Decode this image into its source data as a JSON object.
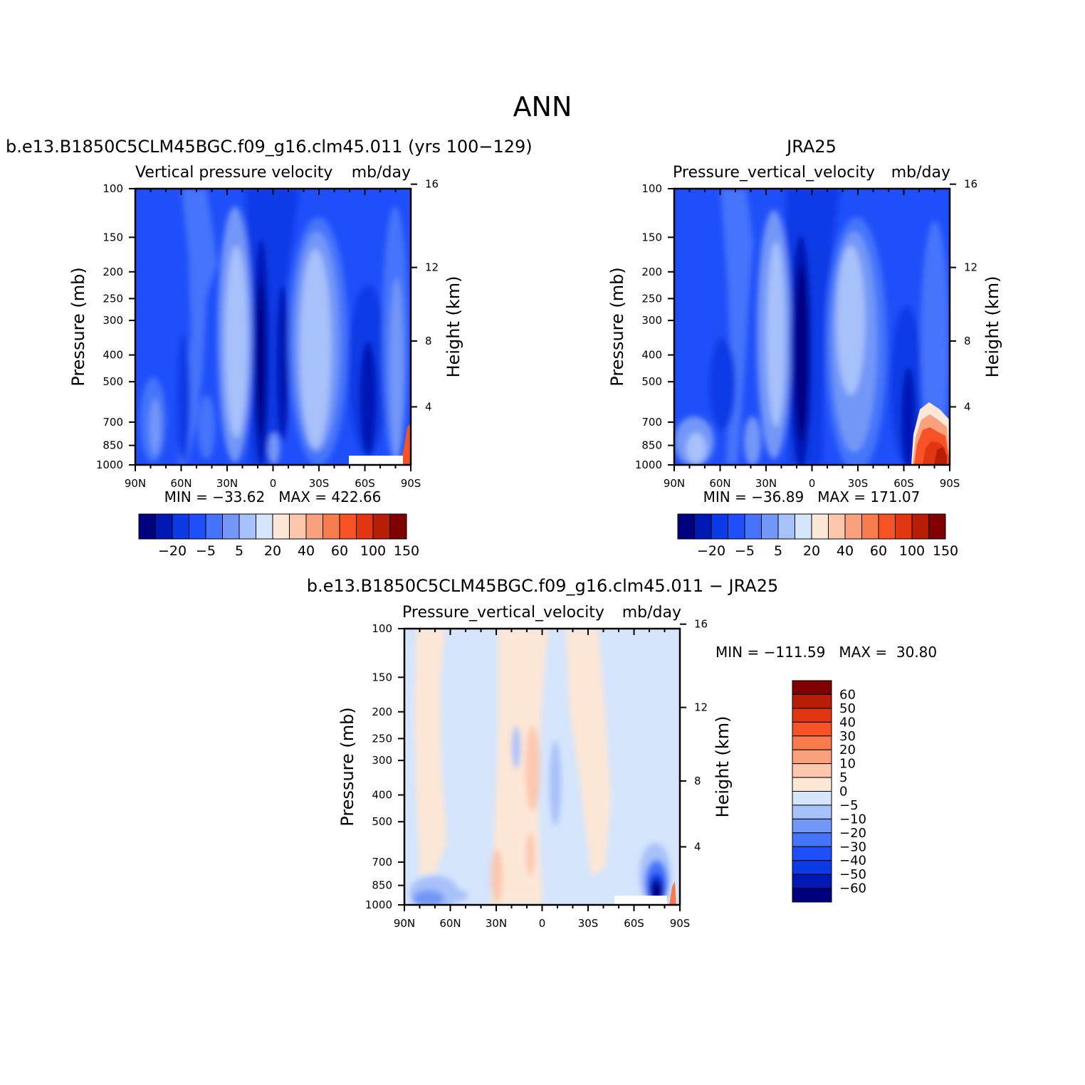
{
  "title": "ANN",
  "panels": [
    {
      "id": "model",
      "case_title": "b.e13.B1850C5CLM45BGC.f09_g16.clm45.011 (yrs 100−129)",
      "var_label": "Vertical pressure velocity",
      "units": "mb/day",
      "stats": "MIN = −33.62   MAX = 422.66"
    },
    {
      "id": "obs",
      "case_title": "JRA25",
      "var_label": "Pressure_vertical_velocity",
      "units": "mb/day",
      "stats": "MIN = −36.89   MAX = 171.07"
    },
    {
      "id": "diff",
      "case_title": "b.e13.B1850C5CLM45BGC.f09_g16.clm45.011 − JRA25",
      "var_label": "Pressure_vertical_velocity",
      "units": "mb/day",
      "stats": "MIN = −111.59   MAX =  30.80"
    }
  ],
  "axes": {
    "ylabel_left": "Pressure (mb)",
    "ylabel_right": "Height (km)",
    "x_ticks": [
      "90N",
      "60N",
      "30N",
      "0",
      "30S",
      "60S",
      "90S"
    ],
    "p_ticks": [
      "100",
      "150",
      "200",
      "250",
      "300",
      "400",
      "500",
      "700",
      "850",
      "1000"
    ],
    "h_ticks": [
      "16",
      "12",
      "8",
      "4"
    ]
  },
  "colorbars": {
    "main": {
      "colors": [
        "#00007f",
        "#0019b4",
        "#0b3ae6",
        "#1f4ff9",
        "#4574fa",
        "#7397f7",
        "#a7c1fa",
        "#d5e5fc",
        "#fde7d6",
        "#fcc7ad",
        "#f9a07d",
        "#f67b4d",
        "#f65226",
        "#e23512",
        "#b81e06",
        "#7f0000"
      ],
      "labels": [
        "−20",
        "−5",
        "5",
        "20",
        "40",
        "60",
        "100",
        "150"
      ]
    },
    "diff": {
      "colors": [
        "#7f0000",
        "#b81e06",
        "#e23512",
        "#f65226",
        "#f67b4d",
        "#f9a07d",
        "#fcc7ad",
        "#fde7d6",
        "#d5e5fc",
        "#a7c1fa",
        "#7397f7",
        "#4574fa",
        "#1f4ff9",
        "#0b3ae6",
        "#0019b4",
        "#00007f"
      ],
      "labels": [
        "60",
        "50",
        "40",
        "30",
        "20",
        "10",
        "5",
        "0",
        "−5",
        "−10",
        "−20",
        "−30",
        "−40",
        "−50",
        "−60"
      ]
    }
  },
  "chart_data": [
    {
      "type": "heatmap",
      "title": "Vertical pressure velocity",
      "units": "mb/day",
      "xlabel": "",
      "ylabel": "Pressure (mb)",
      "ylabel_right": "Height (km)",
      "x": [
        "90N",
        "60N",
        "30N",
        "0",
        "30S",
        "60S",
        "90S"
      ],
      "y": [
        100,
        150,
        200,
        250,
        300,
        400,
        500,
        700,
        850,
        1000
      ],
      "ylim": [
        1000,
        100
      ],
      "min": -33.62,
      "max": 422.66,
      "levels": [
        -30,
        -20,
        -10,
        -5,
        0,
        5,
        10,
        20,
        30,
        40,
        50,
        60,
        80,
        100,
        120,
        150,
        200
      ]
    },
    {
      "type": "heatmap",
      "title": "Pressure_vertical_velocity",
      "units": "mb/day",
      "xlabel": "",
      "ylabel": "Pressure (mb)",
      "ylabel_right": "Height (km)",
      "x": [
        "90N",
        "60N",
        "30N",
        "0",
        "30S",
        "60S",
        "90S"
      ],
      "y": [
        100,
        150,
        200,
        250,
        300,
        400,
        500,
        700,
        850,
        1000
      ],
      "ylim": [
        1000,
        100
      ],
      "min": -36.89,
      "max": 171.07,
      "levels": [
        -30,
        -20,
        -10,
        -5,
        0,
        5,
        10,
        20,
        30,
        40,
        50,
        60,
        80,
        100,
        120,
        150,
        200
      ]
    },
    {
      "type": "heatmap",
      "title": "Pressure_vertical_velocity",
      "units": "mb/day",
      "xlabel": "",
      "ylabel": "Pressure (mb)",
      "ylabel_right": "Height (km)",
      "x": [
        "90N",
        "60N",
        "30N",
        "0",
        "30S",
        "60S",
        "90S"
      ],
      "y": [
        100,
        150,
        200,
        250,
        300,
        400,
        500,
        700,
        850,
        1000
      ],
      "ylim": [
        1000,
        100
      ],
      "min": -111.59,
      "max": 30.8,
      "levels": [
        60,
        50,
        40,
        30,
        20,
        10,
        5,
        0,
        -5,
        -10,
        -20,
        -30,
        -40,
        -50,
        -60
      ]
    }
  ]
}
